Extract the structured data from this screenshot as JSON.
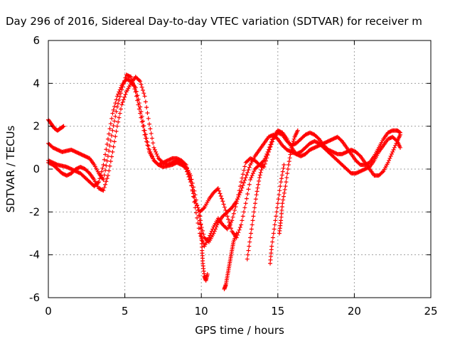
{
  "chart_data": {
    "type": "scatter",
    "title": "Day 296 of 2016, Sidereal Day-to-day VTEC variation (SDTVAR) for receiver m",
    "xlabel": "GPS time / hours",
    "ylabel": "SDTVAR / TECUs",
    "xlim": [
      0,
      25
    ],
    "ylim": [
      -6,
      6
    ],
    "xticks": [
      "0",
      "5",
      "10",
      "15",
      "20",
      "25"
    ],
    "yticks": [
      "-6",
      "-4",
      "-2",
      "0",
      "2",
      "4",
      "6"
    ],
    "grid": true,
    "marker": "+",
    "colors": {
      "series": "#ff0000"
    },
    "series": [
      {
        "x": [
          0.0,
          0.3,
          0.6,
          0.9,
          1.2,
          1.5,
          1.8,
          2.1,
          2.4,
          2.7,
          3.0,
          3.3,
          3.6,
          3.9,
          4.2,
          4.5,
          4.8,
          5.1,
          5.4,
          5.7,
          6.0,
          6.3,
          6.6,
          6.9,
          7.2,
          7.5,
          7.8,
          8.1,
          8.4,
          8.7,
          9.0,
          9.3,
          9.6,
          9.9,
          10.2,
          10.5,
          10.8,
          11.1,
          11.4,
          11.7,
          12.0,
          12.3,
          12.6,
          12.9,
          13.2,
          13.5,
          13.8,
          14.1,
          14.4,
          14.7,
          15.0,
          15.3,
          15.6,
          15.9,
          16.2,
          16.5,
          16.8,
          17.1,
          17.4,
          17.7,
          18.0,
          18.3,
          18.6,
          18.9,
          19.2,
          19.5,
          19.8,
          20.1,
          20.4,
          20.7,
          21.0,
          21.3,
          21.6,
          21.9,
          22.2,
          22.5,
          22.8,
          23.0
        ],
        "y": [
          0.4,
          0.3,
          0.2,
          0.15,
          0.1,
          0.0,
          -0.1,
          -0.2,
          -0.4,
          -0.6,
          -0.8,
          -0.6,
          0.2,
          1.4,
          2.6,
          3.4,
          3.9,
          4.2,
          4.1,
          3.8,
          2.9,
          1.8,
          0.9,
          0.4,
          0.2,
          0.1,
          0.15,
          0.2,
          0.3,
          0.2,
          0.1,
          -0.3,
          -1.2,
          -2.4,
          -3.2,
          -3.4,
          -3.0,
          -2.5,
          -2.2,
          -2.0,
          -1.8,
          -1.5,
          -1.0,
          -0.4,
          0.2,
          0.6,
          0.9,
          1.2,
          1.5,
          1.6,
          1.4,
          1.1,
          0.9,
          0.8,
          0.7,
          0.8,
          1.0,
          1.2,
          1.3,
          1.2,
          1.0,
          0.8,
          0.6,
          0.4,
          0.2,
          0.0,
          -0.2,
          -0.2,
          -0.1,
          0.0,
          0.1,
          0.4,
          0.8,
          1.1,
          1.4,
          1.5,
          1.3,
          1.0
        ]
      },
      {
        "x": [
          0.0,
          0.3,
          0.6,
          0.9,
          1.2,
          1.5,
          1.8,
          2.1,
          2.4,
          2.7,
          3.0,
          3.3,
          3.6,
          3.9,
          4.2,
          4.5,
          4.8,
          5.1,
          5.4,
          5.7,
          6.0,
          6.3,
          6.6,
          6.9,
          7.2,
          7.5,
          7.8,
          8.1,
          8.4,
          8.7,
          9.0,
          9.3,
          9.6,
          9.9,
          10.2,
          10.5,
          10.8,
          11.1,
          11.4,
          11.7,
          12.0,
          12.3,
          12.6,
          12.9,
          13.2,
          13.5,
          13.8,
          14.1,
          14.4,
          14.7,
          15.0,
          15.3,
          15.6,
          15.9,
          16.2,
          16.5,
          16.8,
          17.1,
          17.4,
          17.7,
          18.0,
          18.3,
          18.6,
          18.9,
          19.2,
          19.5,
          19.8,
          20.1,
          20.4,
          20.7,
          21.0,
          21.3,
          21.6,
          21.9,
          22.2,
          22.5,
          22.8,
          23.0
        ],
        "y": [
          1.2,
          1.0,
          0.9,
          0.8,
          0.85,
          0.9,
          0.8,
          0.7,
          0.6,
          0.5,
          0.2,
          -0.2,
          -0.5,
          0.6,
          1.8,
          2.9,
          3.7,
          4.4,
          4.3,
          3.6,
          2.6,
          1.6,
          0.8,
          0.4,
          0.2,
          0.3,
          0.4,
          0.5,
          0.5,
          0.4,
          0.2,
          -0.5,
          -1.8,
          -3.0,
          -3.6,
          -3.2,
          -2.7,
          -2.3,
          -2.6,
          -2.8,
          -2.4,
          -1.6,
          -0.6,
          0.3,
          0.5,
          0.4,
          0.2,
          0.1,
          0.8,
          1.4,
          1.7,
          1.6,
          1.3,
          1.1,
          1.2,
          1.4,
          1.6,
          1.7,
          1.6,
          1.4,
          1.1,
          0.9,
          0.8,
          0.7,
          0.7,
          0.8,
          0.9,
          0.8,
          0.6,
          0.3,
          0.0,
          -0.3,
          -0.3,
          -0.1,
          0.3,
          0.8,
          1.3,
          1.6
        ]
      },
      {
        "x": [
          0.0,
          0.3,
          0.6,
          0.9,
          1.2,
          1.5,
          1.8,
          2.1,
          2.4,
          2.7,
          3.0,
          3.3,
          3.6,
          3.9,
          4.2,
          4.5,
          4.8,
          5.1,
          5.4,
          5.7,
          6.0,
          6.3,
          6.6,
          6.9,
          7.2,
          7.5,
          7.8,
          8.1,
          8.4,
          8.7,
          9.0,
          9.3,
          9.6,
          9.9,
          10.2,
          10.5,
          10.8,
          11.1,
          11.4,
          11.7,
          12.0,
          12.3,
          12.6,
          12.9,
          13.2,
          13.5,
          13.8,
          14.1,
          14.4,
          14.7,
          15.0,
          15.3,
          15.6,
          15.9,
          16.2,
          16.5,
          16.8,
          17.1,
          17.4,
          17.7,
          18.0,
          18.3,
          18.6,
          18.9,
          19.2,
          19.5,
          19.8,
          20.1,
          20.4,
          20.7,
          21.0,
          21.3,
          21.6,
          21.9,
          22.2,
          22.5,
          22.8,
          23.0
        ],
        "y": [
          0.3,
          0.2,
          0.0,
          -0.2,
          -0.3,
          -0.2,
          0.0,
          0.1,
          0.0,
          -0.2,
          -0.5,
          -0.9,
          -1.0,
          -0.3,
          0.8,
          2.0,
          3.0,
          3.6,
          4.0,
          4.3,
          4.1,
          3.4,
          2.1,
          1.0,
          0.5,
          0.3,
          0.2,
          0.3,
          0.4,
          0.3,
          0.0,
          -0.6,
          -1.5,
          -2.0,
          -1.8,
          -1.4,
          -1.1,
          -0.9,
          -1.5,
          -2.2,
          -2.9,
          -3.2,
          -2.6,
          -1.6,
          -0.5,
          0.0,
          0.2,
          0.4,
          0.9,
          1.5,
          1.8,
          1.7,
          1.4,
          1.0,
          0.7,
          0.6,
          0.7,
          0.9,
          1.0,
          1.1,
          1.2,
          1.3,
          1.4,
          1.5,
          1.3,
          1.0,
          0.7,
          0.4,
          0.2,
          0.2,
          0.3,
          0.6,
          1.0,
          1.4,
          1.7,
          1.8,
          1.8,
          1.7
        ]
      },
      {
        "x": [
          0.0,
          0.2,
          0.4,
          0.6,
          0.8,
          1.0
        ],
        "y": [
          2.3,
          2.1,
          1.9,
          1.8,
          1.9,
          2.0
        ]
      },
      {
        "x": [
          9.9,
          10.0,
          10.05,
          10.1,
          10.2,
          10.3,
          10.4
        ],
        "y": [
          -2.0,
          -3.0,
          -3.8,
          -4.4,
          -5.0,
          -5.2,
          -4.9
        ]
      },
      {
        "x": [
          11.5,
          11.6,
          11.7,
          11.8,
          11.9,
          12.0,
          12.1,
          12.3
        ],
        "y": [
          -5.6,
          -5.4,
          -5.0,
          -4.6,
          -4.2,
          -3.8,
          -3.4,
          -3.0
        ]
      },
      {
        "x": [
          13.0,
          13.2,
          13.4,
          13.6,
          13.8,
          14.0
        ],
        "y": [
          -4.2,
          -3.2,
          -2.2,
          -1.2,
          -0.4,
          0.2
        ]
      },
      {
        "x": [
          14.5,
          14.6,
          14.8,
          15.0,
          15.2,
          15.4
        ],
        "y": [
          -4.4,
          -3.6,
          -2.6,
          -1.6,
          -0.6,
          0.2
        ]
      },
      {
        "x": [
          15.1,
          15.2,
          15.3,
          15.5,
          15.7,
          15.9,
          16.1,
          16.3
        ],
        "y": [
          -3.0,
          -2.4,
          -1.6,
          -0.8,
          0.2,
          1.0,
          1.5,
          1.8
        ]
      }
    ]
  }
}
